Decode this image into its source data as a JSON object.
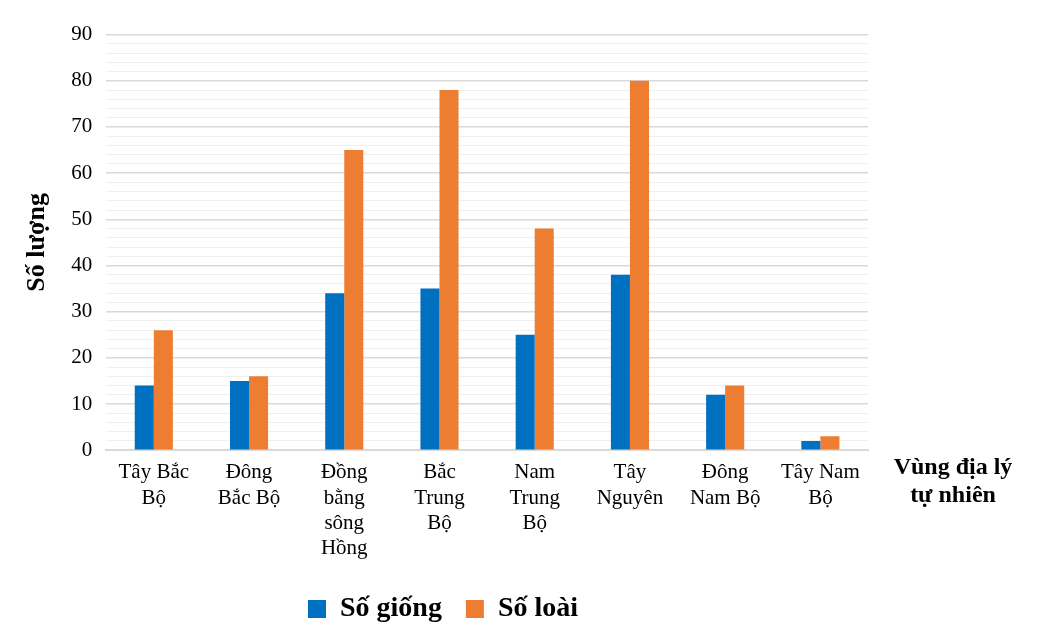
{
  "chart_data": {
    "type": "bar",
    "xlabel": "Vùng địa lý tự nhiên",
    "ylabel": "Số lượng",
    "categories": [
      "Tây Bắc Bộ",
      "Đông Bắc Bộ",
      "Đồng bằng sông Hồng",
      "Bắc Trung Bộ",
      "Nam Trung Bộ",
      "Tây Nguyên",
      "Đông Nam Bộ",
      "Tây Nam Bộ"
    ],
    "series": [
      {
        "name": "Số giống",
        "color": "#0070c0",
        "values": [
          14,
          15,
          34,
          35,
          25,
          38,
          12,
          2
        ]
      },
      {
        "name": "Số loài",
        "color": "#ed7d31",
        "values": [
          26,
          16,
          65,
          78,
          48,
          80,
          14,
          3
        ]
      }
    ],
    "ylim": [
      0,
      90
    ],
    "yticks": [
      0,
      {
        "value": 2,
        "label": null
      },
      {
        "value": 4,
        "label": null
      },
      {
        "value": 6,
        "label": null
      },
      {
        "value": 8,
        "label": null
      },
      10,
      {
        "value": 12,
        "label": null
      },
      {
        "value": 14,
        "label": null
      },
      {
        "value": 16,
        "label": null
      },
      {
        "value": 18,
        "label": null
      },
      20,
      {
        "value": 22,
        "label": null
      },
      {
        "value": 24,
        "label": null
      },
      {
        "value": 26,
        "label": null
      },
      {
        "value": 28,
        "label": null
      },
      30,
      {
        "value": 32,
        "label": null
      },
      {
        "value": 34,
        "label": null
      },
      {
        "value": 36,
        "label": null
      },
      {
        "value": 38,
        "label": null
      },
      40,
      {
        "value": 42,
        "label": null
      },
      {
        "value": 44,
        "label": null
      },
      {
        "value": 46,
        "label": null
      },
      {
        "value": 48,
        "label": null
      },
      50,
      {
        "value": 52,
        "label": null
      },
      {
        "value": 54,
        "label": null
      },
      {
        "value": 56,
        "label": null
      },
      {
        "value": 58,
        "label": null
      },
      60,
      {
        "value": 62,
        "label": null
      },
      {
        "value": 64,
        "label": null
      },
      {
        "value": 66,
        "label": null
      },
      {
        "value": 68,
        "label": null
      },
      70,
      {
        "value": 72,
        "label": null
      },
      {
        "value": 74,
        "label": null
      },
      {
        "value": 76,
        "label": null
      },
      {
        "value": 78,
        "label": null
      },
      80,
      {
        "value": 82,
        "label": null
      },
      {
        "value": 84,
        "label": null
      },
      {
        "value": 86,
        "label": null
      },
      {
        "value": 88,
        "label": null
      },
      90
    ],
    "grid": "y",
    "legend": "bottom"
  }
}
